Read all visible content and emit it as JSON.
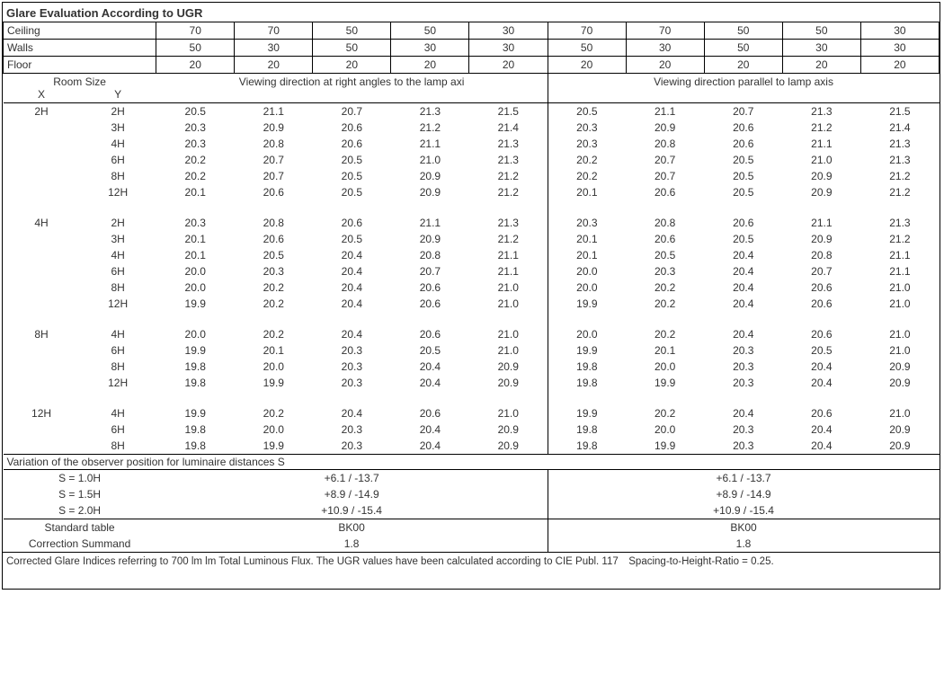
{
  "title": "Glare Evaluation According to UGR",
  "header_rows": [
    {
      "label": "Ceiling",
      "vals": [
        "70",
        "70",
        "50",
        "50",
        "30",
        "70",
        "70",
        "50",
        "50",
        "30"
      ]
    },
    {
      "label": "Walls",
      "vals": [
        "50",
        "30",
        "50",
        "30",
        "30",
        "50",
        "30",
        "50",
        "30",
        "30"
      ]
    },
    {
      "label": "Floor",
      "vals": [
        "20",
        "20",
        "20",
        "20",
        "20",
        "20",
        "20",
        "20",
        "20",
        "20"
      ]
    }
  ],
  "room_size_label": "Room Size",
  "x_label": "X",
  "y_label": "Y",
  "view_right": "Viewing direction at right angles to the lamp axi",
  "view_parallel": "Viewing direction parallel to lamp axis",
  "groups": [
    {
      "x": "2H",
      "rows": [
        {
          "y": "2H",
          "a": [
            "20.5",
            "21.1",
            "20.7",
            "21.3",
            "21.5"
          ],
          "b": [
            "20.5",
            "21.1",
            "20.7",
            "21.3",
            "21.5"
          ]
        },
        {
          "y": "3H",
          "a": [
            "20.3",
            "20.9",
            "20.6",
            "21.2",
            "21.4"
          ],
          "b": [
            "20.3",
            "20.9",
            "20.6",
            "21.2",
            "21.4"
          ]
        },
        {
          "y": "4H",
          "a": [
            "20.3",
            "20.8",
            "20.6",
            "21.1",
            "21.3"
          ],
          "b": [
            "20.3",
            "20.8",
            "20.6",
            "21.1",
            "21.3"
          ]
        },
        {
          "y": "6H",
          "a": [
            "20.2",
            "20.7",
            "20.5",
            "21.0",
            "21.3"
          ],
          "b": [
            "20.2",
            "20.7",
            "20.5",
            "21.0",
            "21.3"
          ]
        },
        {
          "y": "8H",
          "a": [
            "20.2",
            "20.7",
            "20.5",
            "20.9",
            "21.2"
          ],
          "b": [
            "20.2",
            "20.7",
            "20.5",
            "20.9",
            "21.2"
          ]
        },
        {
          "y": "12H",
          "a": [
            "20.1",
            "20.6",
            "20.5",
            "20.9",
            "21.2"
          ],
          "b": [
            "20.1",
            "20.6",
            "20.5",
            "20.9",
            "21.2"
          ]
        }
      ]
    },
    {
      "x": "4H",
      "rows": [
        {
          "y": "2H",
          "a": [
            "20.3",
            "20.8",
            "20.6",
            "21.1",
            "21.3"
          ],
          "b": [
            "20.3",
            "20.8",
            "20.6",
            "21.1",
            "21.3"
          ]
        },
        {
          "y": "3H",
          "a": [
            "20.1",
            "20.6",
            "20.5",
            "20.9",
            "21.2"
          ],
          "b": [
            "20.1",
            "20.6",
            "20.5",
            "20.9",
            "21.2"
          ]
        },
        {
          "y": "4H",
          "a": [
            "20.1",
            "20.5",
            "20.4",
            "20.8",
            "21.1"
          ],
          "b": [
            "20.1",
            "20.5",
            "20.4",
            "20.8",
            "21.1"
          ]
        },
        {
          "y": "6H",
          "a": [
            "20.0",
            "20.3",
            "20.4",
            "20.7",
            "21.1"
          ],
          "b": [
            "20.0",
            "20.3",
            "20.4",
            "20.7",
            "21.1"
          ]
        },
        {
          "y": "8H",
          "a": [
            "20.0",
            "20.2",
            "20.4",
            "20.6",
            "21.0"
          ],
          "b": [
            "20.0",
            "20.2",
            "20.4",
            "20.6",
            "21.0"
          ]
        },
        {
          "y": "12H",
          "a": [
            "19.9",
            "20.2",
            "20.4",
            "20.6",
            "21.0"
          ],
          "b": [
            "19.9",
            "20.2",
            "20.4",
            "20.6",
            "21.0"
          ]
        }
      ]
    },
    {
      "x": "8H",
      "rows": [
        {
          "y": "4H",
          "a": [
            "20.0",
            "20.2",
            "20.4",
            "20.6",
            "21.0"
          ],
          "b": [
            "20.0",
            "20.2",
            "20.4",
            "20.6",
            "21.0"
          ]
        },
        {
          "y": "6H",
          "a": [
            "19.9",
            "20.1",
            "20.3",
            "20.5",
            "21.0"
          ],
          "b": [
            "19.9",
            "20.1",
            "20.3",
            "20.5",
            "21.0"
          ]
        },
        {
          "y": "8H",
          "a": [
            "19.8",
            "20.0",
            "20.3",
            "20.4",
            "20.9"
          ],
          "b": [
            "19.8",
            "20.0",
            "20.3",
            "20.4",
            "20.9"
          ]
        },
        {
          "y": "12H",
          "a": [
            "19.8",
            "19.9",
            "20.3",
            "20.4",
            "20.9"
          ],
          "b": [
            "19.8",
            "19.9",
            "20.3",
            "20.4",
            "20.9"
          ]
        }
      ]
    },
    {
      "x": "12H",
      "rows": [
        {
          "y": "4H",
          "a": [
            "19.9",
            "20.2",
            "20.4",
            "20.6",
            "21.0"
          ],
          "b": [
            "19.9",
            "20.2",
            "20.4",
            "20.6",
            "21.0"
          ]
        },
        {
          "y": "6H",
          "a": [
            "19.8",
            "20.0",
            "20.3",
            "20.4",
            "20.9"
          ],
          "b": [
            "19.8",
            "20.0",
            "20.3",
            "20.4",
            "20.9"
          ]
        },
        {
          "y": "8H",
          "a": [
            "19.8",
            "19.9",
            "20.3",
            "20.4",
            "20.9"
          ],
          "b": [
            "19.8",
            "19.9",
            "20.3",
            "20.4",
            "20.9"
          ]
        }
      ]
    }
  ],
  "variation_title": "Variation of the observer position for luminaire distances S",
  "variation_rows": [
    {
      "label": "S = 1.0H",
      "a": "+6.1 / -13.7",
      "b": "+6.1 / -13.7"
    },
    {
      "label": "S = 1.5H",
      "a": "+8.9 / -14.9",
      "b": "+8.9 / -14.9"
    },
    {
      "label": "S = 2.0H",
      "a": "+10.9 / -15.4",
      "b": "+10.9 / -15.4"
    }
  ],
  "std_table_label": "Standard table",
  "std_table_a": "BK00",
  "std_table_b": "BK00",
  "corr_label": "Correction Summand",
  "corr_a": "1.8",
  "corr_b": "1.8",
  "footnote": "Corrected Glare Indices referring to 700 lm lm Total Luminous Flux. The UGR values have been calculated according to CIE Publ. 117 Spacing-to-Height-Ratio = 0.25."
}
